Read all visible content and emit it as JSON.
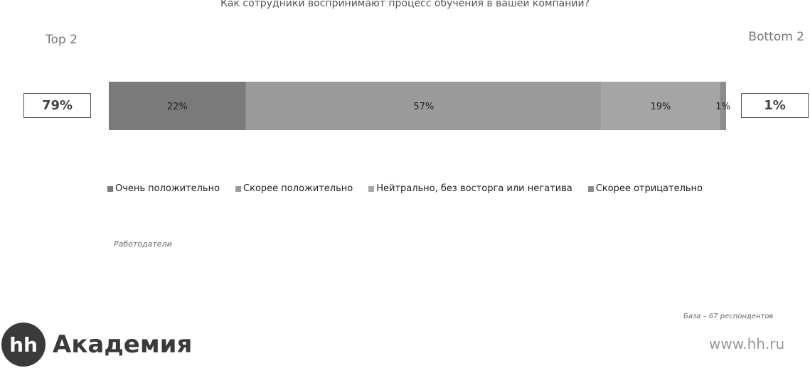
{
  "title": "Как сотрудники воспринимают процесс обучения в вашей компании?",
  "top2": {
    "label": "Top 2",
    "value": "79%"
  },
  "bottom2": {
    "label": "Bottom 2",
    "value": "1%"
  },
  "chart_data": {
    "type": "bar",
    "orientation": "horizontal-stacked-100",
    "title": "Как сотрудники воспринимают процесс обучения в вашей компании?",
    "categories": [
      ""
    ],
    "series": [
      {
        "name": "Очень положительно",
        "values": [
          22
        ],
        "label": "22%",
        "color": "#7a7a7a"
      },
      {
        "name": "Скорее положительно",
        "values": [
          57
        ],
        "label": "57%",
        "color": "#9b9b9b"
      },
      {
        "name": "Нейтрально, без восторга или негатива",
        "values": [
          19
        ],
        "label": "19%",
        "color": "#a5a5a5"
      },
      {
        "name": "Скорее отрицательно",
        "values": [
          1
        ],
        "label": "1%",
        "color": "#8c8c8c"
      }
    ],
    "xlim": [
      0,
      99
    ],
    "legend": "bottom",
    "grid": false
  },
  "source": "Работодатели",
  "base": "База – 67 респондентов",
  "logo": {
    "mark": "hh",
    "text": "Академия"
  },
  "site": "www.hh.ru"
}
